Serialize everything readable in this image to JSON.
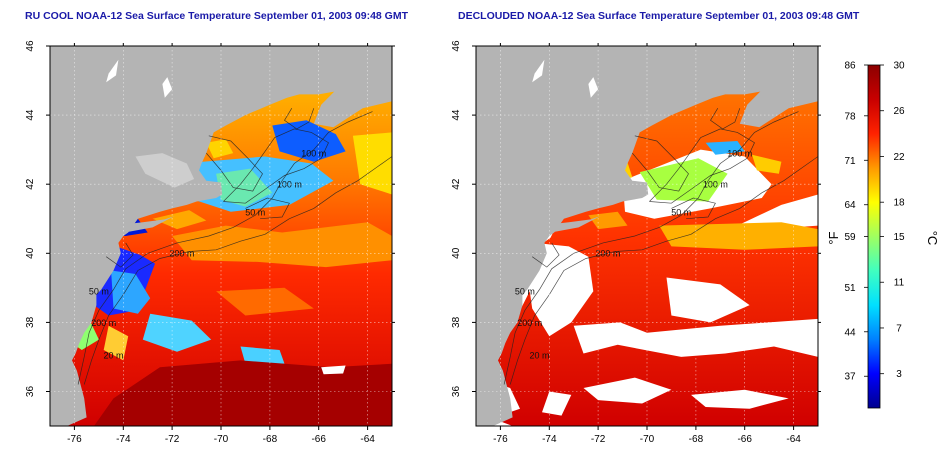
{
  "panels": [
    {
      "id": "left",
      "title": "RU COOL NOAA-12 Sea Surface Temperature September 01, 2003 09:48 GMT",
      "clouds_removed": false,
      "depth_labels": [
        "100 m",
        "100 m",
        "50 m",
        "200 m",
        "50 m",
        "200 m",
        "20 m"
      ]
    },
    {
      "id": "right",
      "title": "DECLOUDED NOAA-12 Sea Surface Temperature September 01, 2003 09:48 GMT",
      "clouds_removed": true,
      "depth_labels": [
        "100 m",
        "100 m",
        "50 m",
        "200 m",
        "50 m",
        "200 m",
        "20 m"
      ]
    }
  ],
  "x_axis_ticks": [
    "-76",
    "-74",
    "-72",
    "-70",
    "-68",
    "-66",
    "-64"
  ],
  "x_axis_values": [
    -76,
    -74,
    -72,
    -70,
    -68,
    -66,
    -64
  ],
  "y_axis_ticks": [
    "46",
    "44",
    "42",
    "40",
    "38",
    "36"
  ],
  "y_axis_values": [
    46,
    44,
    42,
    40,
    38,
    36
  ],
  "extent": {
    "lon": [
      -77,
      -63
    ],
    "lat": [
      35,
      46
    ]
  },
  "colorbar": {
    "min_c": 0,
    "max_c": 30,
    "fahrenheit_label": "°F",
    "celsius_label": "°C",
    "fahrenheit_ticks": [
      "86",
      "78",
      "71",
      "64",
      "59",
      "51",
      "44",
      "37"
    ],
    "fahrenheit_values": [
      86,
      78,
      71,
      64,
      59,
      51,
      44,
      37
    ],
    "celsius_ticks": [
      "30",
      "26",
      "22",
      "18",
      "15",
      "11",
      "7",
      "3"
    ],
    "celsius_values": [
      30,
      26,
      22,
      18,
      15,
      11,
      7,
      3
    ],
    "colors": [
      "#00008f",
      "#0000ff",
      "#0080ff",
      "#00e0ff",
      "#40ffc0",
      "#a0ff60",
      "#ffff00",
      "#ff9900",
      "#ff2200",
      "#c80000",
      "#8c0000"
    ]
  },
  "colors": {
    "land": "#b4b4b4",
    "cloud": "#ffffff",
    "title": "#1a1aa8",
    "contour": "#222222"
  }
}
